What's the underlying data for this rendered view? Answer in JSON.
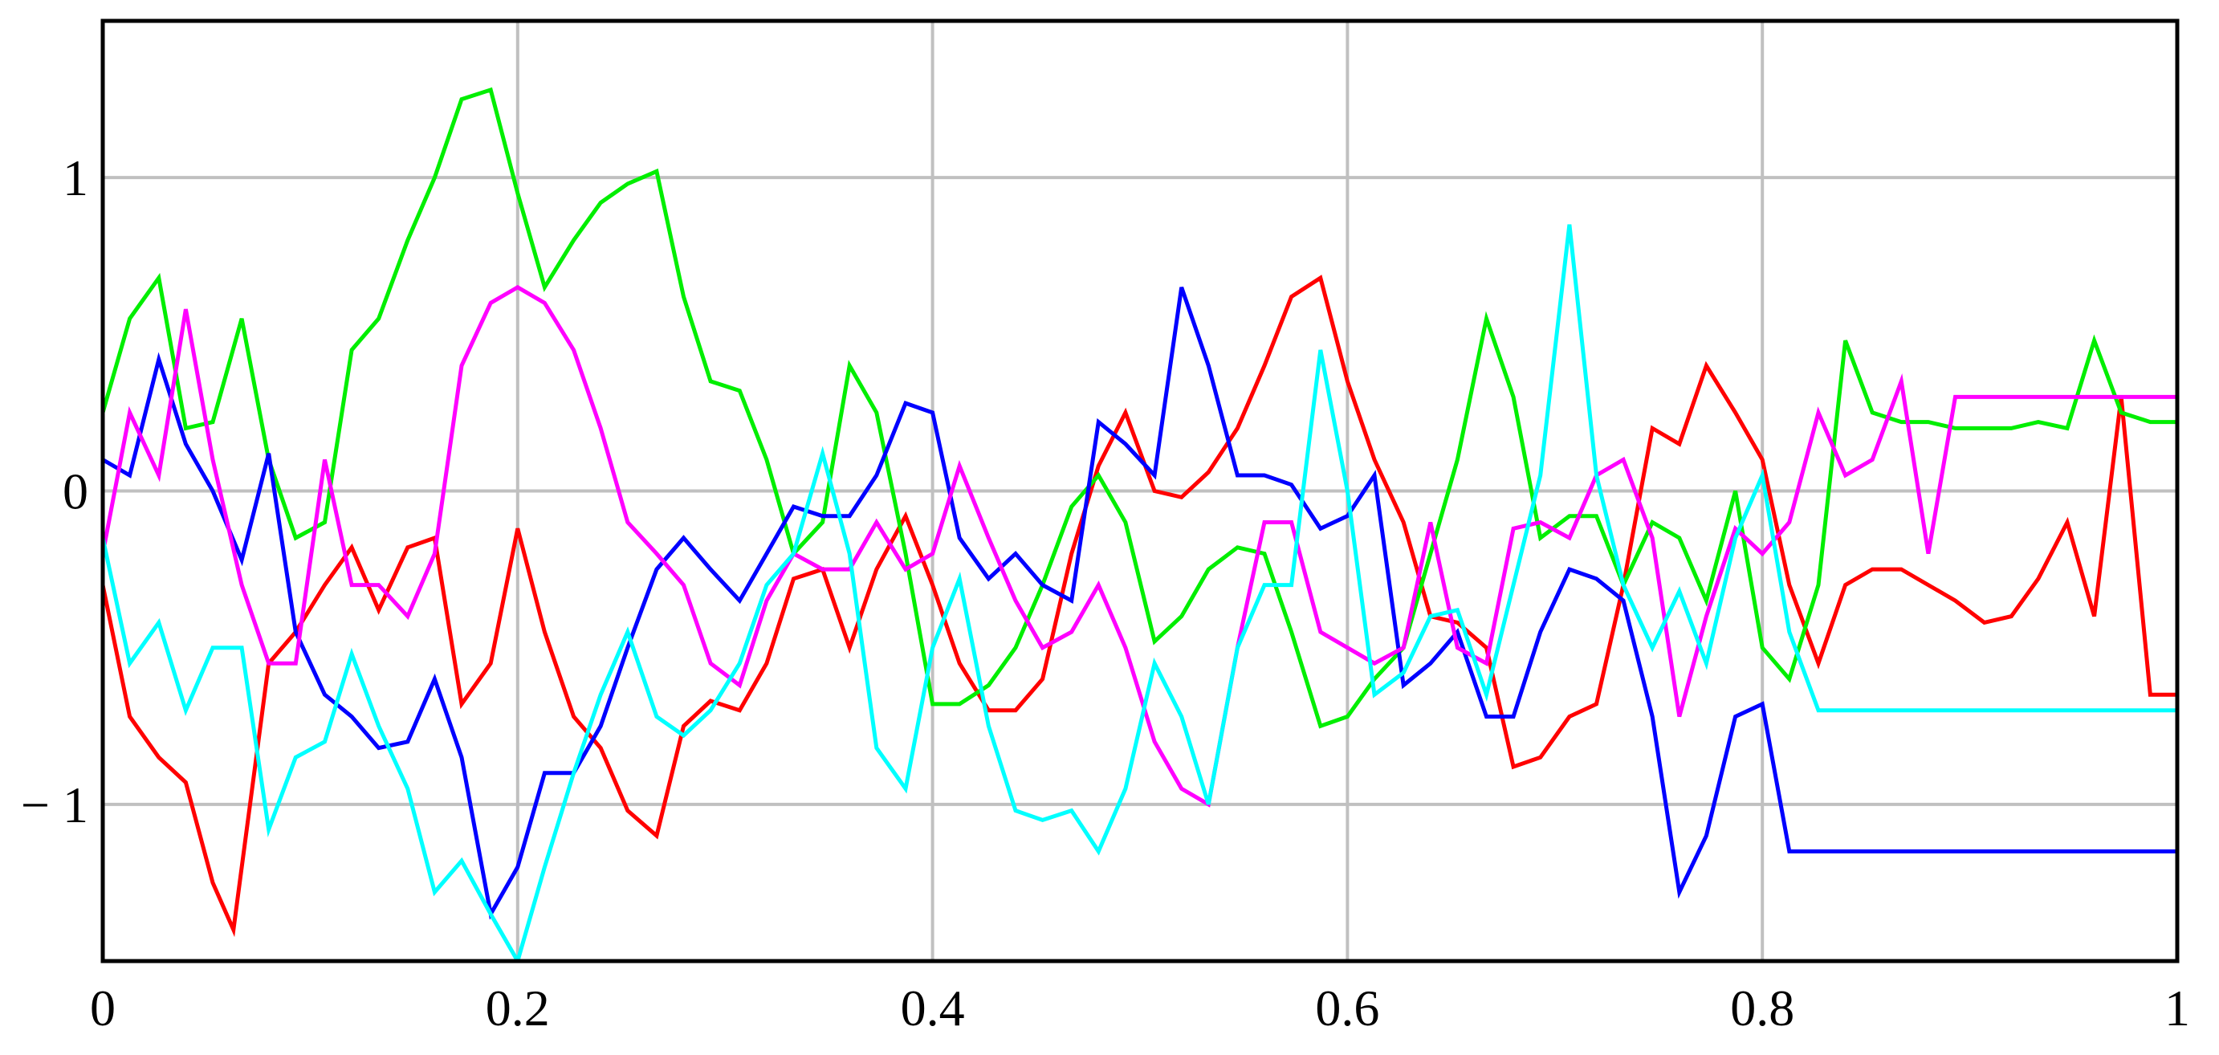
{
  "chart_data": {
    "type": "line",
    "title": "",
    "xlabel": "",
    "ylabel": "",
    "xlim": [
      0,
      1
    ],
    "ylim": [
      -1.5,
      1.5
    ],
    "grid": true,
    "legend": "none",
    "x_ticks": [
      {
        "value": 0,
        "label": "0"
      },
      {
        "value": 0.2,
        "label": "0.2"
      },
      {
        "value": 0.4,
        "label": "0.4"
      },
      {
        "value": 0.6,
        "label": "0.6"
      },
      {
        "value": 0.8,
        "label": "0.8"
      },
      {
        "value": 1,
        "label": "1"
      }
    ],
    "y_ticks": [
      {
        "value": 1,
        "label": "1"
      },
      {
        "value": 0,
        "label": "0"
      },
      {
        "value": -1,
        "label": "− 1"
      }
    ],
    "grid_color": "#c0c0c0",
    "series": [
      {
        "color": "#ff0000",
        "x": [
          0,
          0.013,
          0.027,
          0.04,
          0.053,
          0.063,
          0.08,
          0.093,
          0.107,
          0.12,
          0.133,
          0.147,
          0.16,
          0.173,
          0.187,
          0.2,
          0.213,
          0.227,
          0.24,
          0.253,
          0.267,
          0.28,
          0.293,
          0.307,
          0.32,
          0.333,
          0.347,
          0.36,
          0.373,
          0.387,
          0.4,
          0.413,
          0.427,
          0.44,
          0.453,
          0.467,
          0.48,
          0.493,
          0.507,
          0.52,
          0.533,
          0.547,
          0.56,
          0.573,
          0.587,
          0.6,
          0.613,
          0.627,
          0.64,
          0.653,
          0.667,
          0.68,
          0.693,
          0.707,
          0.72,
          0.733,
          0.747,
          0.76,
          0.773,
          0.787,
          0.8,
          0.813,
          0.827,
          0.84,
          0.853,
          0.867,
          0.88,
          0.893,
          0.907,
          0.92,
          0.933,
          0.947,
          0.96,
          0.973,
          0.987,
          1
        ],
        "y": [
          -0.3,
          -0.72,
          -0.85,
          -0.93,
          -1.25,
          -1.4,
          -0.55,
          -0.45,
          -0.3,
          -0.18,
          -0.38,
          -0.18,
          -0.15,
          -0.68,
          -0.55,
          -0.12,
          -0.45,
          -0.72,
          -0.82,
          -1.02,
          -1.1,
          -0.75,
          -0.67,
          -0.7,
          -0.55,
          -0.28,
          -0.25,
          -0.5,
          -0.25,
          -0.08,
          -0.3,
          -0.55,
          -0.7,
          -0.7,
          -0.6,
          -0.2,
          0.08,
          0.25,
          0.0,
          -0.02,
          0.06,
          0.2,
          0.4,
          0.62,
          0.68,
          0.35,
          0.1,
          -0.1,
          -0.4,
          -0.42,
          -0.5,
          -0.88,
          -0.85,
          -0.72,
          -0.68,
          -0.3,
          0.2,
          0.15,
          0.4,
          0.25,
          0.1,
          -0.3,
          -0.55,
          -0.3,
          -0.25,
          -0.25,
          -0.3,
          -0.35,
          -0.42,
          -0.4,
          -0.28,
          -0.1,
          -0.4,
          0.3,
          -0.65,
          -0.65
        ]
      },
      {
        "color": "#00ee00",
        "x": [
          0,
          0.013,
          0.027,
          0.04,
          0.053,
          0.067,
          0.08,
          0.093,
          0.107,
          0.12,
          0.133,
          0.147,
          0.16,
          0.173,
          0.187,
          0.2,
          0.213,
          0.227,
          0.24,
          0.253,
          0.267,
          0.28,
          0.293,
          0.307,
          0.32,
          0.333,
          0.347,
          0.36,
          0.373,
          0.387,
          0.4,
          0.413,
          0.427,
          0.44,
          0.453,
          0.467,
          0.48,
          0.493,
          0.507,
          0.52,
          0.533,
          0.547,
          0.56,
          0.573,
          0.587,
          0.6,
          0.613,
          0.627,
          0.64,
          0.653,
          0.667,
          0.68,
          0.693,
          0.707,
          0.72,
          0.733,
          0.747,
          0.76,
          0.773,
          0.787,
          0.8,
          0.813,
          0.827,
          0.84,
          0.853,
          0.867,
          0.88,
          0.893,
          0.907,
          0.92,
          0.933,
          0.947,
          0.96,
          0.973,
          0.987,
          1
        ],
        "y": [
          0.25,
          0.55,
          0.68,
          0.2,
          0.22,
          0.55,
          0.1,
          -0.15,
          -0.1,
          0.45,
          0.55,
          0.8,
          1.0,
          1.25,
          1.28,
          0.95,
          0.65,
          0.8,
          0.92,
          0.98,
          1.02,
          0.62,
          0.35,
          0.32,
          0.1,
          -0.2,
          -0.1,
          0.4,
          0.25,
          -0.2,
          -0.68,
          -0.68,
          -0.62,
          -0.5,
          -0.3,
          -0.05,
          0.05,
          -0.1,
          -0.48,
          -0.4,
          -0.25,
          -0.18,
          -0.2,
          -0.45,
          -0.75,
          -0.72,
          -0.6,
          -0.5,
          -0.2,
          0.1,
          0.55,
          0.3,
          -0.15,
          -0.08,
          -0.08,
          -0.3,
          -0.1,
          -0.15,
          -0.35,
          0.0,
          -0.5,
          -0.6,
          -0.3,
          0.48,
          0.25,
          0.22,
          0.22,
          0.2,
          0.2,
          0.2,
          0.22,
          0.2,
          0.48,
          0.25,
          0.22,
          0.22
        ]
      },
      {
        "color": "#0000ff",
        "x": [
          0,
          0.013,
          0.027,
          0.04,
          0.053,
          0.067,
          0.08,
          0.093,
          0.107,
          0.12,
          0.133,
          0.147,
          0.16,
          0.173,
          0.187,
          0.2,
          0.213,
          0.227,
          0.24,
          0.253,
          0.267,
          0.28,
          0.293,
          0.307,
          0.32,
          0.333,
          0.347,
          0.36,
          0.373,
          0.387,
          0.4,
          0.413,
          0.427,
          0.44,
          0.453,
          0.467,
          0.48,
          0.493,
          0.507,
          0.52,
          0.533,
          0.547,
          0.56,
          0.573,
          0.587,
          0.6,
          0.613,
          0.627,
          0.64,
          0.653,
          0.667,
          0.68,
          0.693,
          0.707,
          0.72,
          0.733,
          0.747,
          0.76,
          0.773,
          0.787,
          0.8,
          0.813,
          0.827,
          0.84,
          0.853,
          0.867,
          0.88,
          0.893,
          0.907,
          0.92,
          0.933,
          0.947,
          0.96,
          0.973,
          0.987,
          1
        ],
        "y": [
          0.1,
          0.05,
          0.42,
          0.15,
          0.0,
          -0.22,
          0.12,
          -0.45,
          -0.65,
          -0.72,
          -0.82,
          -0.8,
          -0.6,
          -0.85,
          -1.35,
          -1.2,
          -0.9,
          -0.9,
          -0.75,
          -0.5,
          -0.25,
          -0.15,
          -0.25,
          -0.35,
          -0.2,
          -0.05,
          -0.08,
          -0.08,
          0.05,
          0.28,
          0.25,
          -0.15,
          -0.28,
          -0.2,
          -0.3,
          -0.35,
          0.22,
          0.15,
          0.05,
          0.65,
          0.4,
          0.05,
          0.05,
          0.02,
          -0.12,
          -0.08,
          0.05,
          -0.62,
          -0.55,
          -0.45,
          -0.72,
          -0.72,
          -0.45,
          -0.25,
          -0.28,
          -0.35,
          -0.72,
          -1.28,
          -1.1,
          -0.72,
          -0.68,
          -1.15,
          -1.15,
          -1.15,
          -1.15,
          -1.15,
          -1.15,
          -1.15,
          -1.15,
          -1.15,
          -1.15,
          -1.15,
          -1.15,
          -1.15,
          -1.15,
          -1.15
        ]
      },
      {
        "color": "#ff00ff",
        "x": [
          0,
          0.013,
          0.027,
          0.04,
          0.053,
          0.067,
          0.08,
          0.093,
          0.107,
          0.12,
          0.133,
          0.147,
          0.16,
          0.173,
          0.187,
          0.2,
          0.213,
          0.227,
          0.24,
          0.253,
          0.267,
          0.28,
          0.293,
          0.307,
          0.32,
          0.333,
          0.347,
          0.36,
          0.373,
          0.387,
          0.4,
          0.413,
          0.427,
          0.44,
          0.453,
          0.467,
          0.48,
          0.493,
          0.507,
          0.52,
          0.533,
          0.547,
          0.56,
          0.573,
          0.587,
          0.6,
          0.613,
          0.627,
          0.64,
          0.653,
          0.667,
          0.68,
          0.693,
          0.707,
          0.72,
          0.733,
          0.747,
          0.76,
          0.773,
          0.787,
          0.8,
          0.813,
          0.827,
          0.84,
          0.853,
          0.867,
          0.88,
          0.893,
          0.907,
          0.92,
          0.933,
          0.947,
          0.96,
          0.973,
          0.987,
          1
        ],
        "y": [
          -0.2,
          0.25,
          0.05,
          0.58,
          0.1,
          -0.3,
          -0.55,
          -0.55,
          0.1,
          -0.3,
          -0.3,
          -0.4,
          -0.2,
          0.4,
          0.6,
          0.65,
          0.6,
          0.45,
          0.2,
          -0.1,
          -0.2,
          -0.3,
          -0.55,
          -0.62,
          -0.35,
          -0.2,
          -0.25,
          -0.25,
          -0.1,
          -0.25,
          -0.2,
          0.08,
          -0.15,
          -0.35,
          -0.5,
          -0.45,
          -0.3,
          -0.5,
          -0.8,
          -0.95,
          -1.0,
          -0.5,
          -0.1,
          -0.1,
          -0.45,
          -0.5,
          -0.55,
          -0.5,
          -0.1,
          -0.5,
          -0.55,
          -0.12,
          -0.1,
          -0.15,
          0.05,
          0.1,
          -0.15,
          -0.72,
          -0.4,
          -0.12,
          -0.2,
          -0.1,
          0.25,
          0.05,
          0.1,
          0.35,
          -0.2,
          0.3,
          0.3,
          0.3,
          0.3,
          0.3,
          0.3,
          0.3,
          0.3,
          0.3
        ]
      },
      {
        "color": "#00ffff",
        "x": [
          0,
          0.013,
          0.027,
          0.04,
          0.053,
          0.067,
          0.08,
          0.093,
          0.107,
          0.12,
          0.133,
          0.147,
          0.16,
          0.173,
          0.187,
          0.2,
          0.213,
          0.227,
          0.24,
          0.253,
          0.267,
          0.28,
          0.293,
          0.307,
          0.32,
          0.333,
          0.347,
          0.36,
          0.373,
          0.387,
          0.4,
          0.413,
          0.427,
          0.44,
          0.453,
          0.467,
          0.48,
          0.493,
          0.507,
          0.52,
          0.533,
          0.547,
          0.56,
          0.573,
          0.587,
          0.6,
          0.613,
          0.627,
          0.64,
          0.653,
          0.667,
          0.68,
          0.693,
          0.707,
          0.72,
          0.733,
          0.747,
          0.76,
          0.773,
          0.787,
          0.8,
          0.813,
          0.827,
          0.84,
          0.853,
          0.867,
          0.88,
          0.893,
          0.907,
          0.92,
          0.933,
          0.947,
          0.96,
          0.973,
          0.987,
          1
        ],
        "y": [
          -0.15,
          -0.55,
          -0.42,
          -0.7,
          -0.5,
          -0.5,
          -1.08,
          -0.85,
          -0.8,
          -0.52,
          -0.75,
          -0.95,
          -1.28,
          -1.18,
          -1.35,
          -1.5,
          -1.2,
          -0.9,
          -0.65,
          -0.45,
          -0.72,
          -0.78,
          -0.7,
          -0.55,
          -0.3,
          -0.2,
          0.12,
          -0.2,
          -0.82,
          -0.95,
          -0.5,
          -0.28,
          -0.75,
          -1.02,
          -1.05,
          -1.02,
          -1.15,
          -0.95,
          -0.55,
          -0.72,
          -1.0,
          -0.5,
          -0.3,
          -0.3,
          0.45,
          0.0,
          -0.65,
          -0.58,
          -0.4,
          -0.38,
          -0.65,
          -0.3,
          0.05,
          0.85,
          0.05,
          -0.3,
          -0.5,
          -0.32,
          -0.55,
          -0.15,
          0.05,
          -0.45,
          -0.7,
          -0.7,
          -0.7,
          -0.7,
          -0.7,
          -0.7,
          -0.7,
          -0.7,
          -0.7,
          -0.7,
          -0.7,
          -0.7,
          -0.7,
          -0.7
        ]
      }
    ]
  }
}
